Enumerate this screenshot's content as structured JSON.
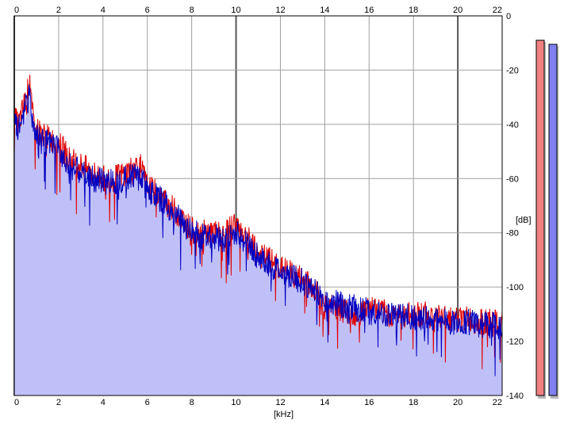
{
  "chart_data": {
    "type": "line",
    "title": "",
    "xlabel": "[kHz]",
    "ylabel": "[dB]",
    "xlim": [
      0,
      22
    ],
    "ylim": [
      -140,
      0
    ],
    "x_ticks": [
      "0",
      "2",
      "4",
      "6",
      "8",
      "10",
      "12",
      "14",
      "16",
      "18",
      "20",
      "22"
    ],
    "y_ticks": [
      "0",
      "-20",
      "-40",
      "-60",
      "-80",
      "-100",
      "-120",
      "-140"
    ],
    "grid": true,
    "legend": "none",
    "series": [
      {
        "color": "#e00000",
        "x": [
          0,
          0.2,
          0.4,
          0.6,
          0.7,
          0.8,
          1,
          1.5,
          2,
          2.5,
          3,
          3.5,
          4,
          4.5,
          5,
          5.5,
          5.7,
          6,
          6.5,
          7,
          7.5,
          8,
          8.5,
          9,
          9.5,
          10,
          10.5,
          11,
          11.5,
          12,
          12.5,
          13,
          13.5,
          14,
          14.5,
          15,
          15.5,
          16,
          16.5,
          17,
          17.5,
          18,
          18.5,
          19,
          19.5,
          20,
          20.5,
          21,
          21.5,
          22
        ],
        "values": [
          -38,
          -40,
          -34,
          -28,
          -22,
          -36,
          -42,
          -45,
          -47,
          -53,
          -55,
          -58,
          -60,
          -60,
          -58,
          -55,
          -56,
          -63,
          -66,
          -70,
          -74,
          -79,
          -80,
          -80,
          -81,
          -76,
          -82,
          -88,
          -90,
          -93,
          -95,
          -97,
          -100,
          -108,
          -107,
          -109,
          -110,
          -107,
          -109,
          -110,
          -111,
          -110,
          -110,
          -111,
          -111,
          -112,
          -112,
          -113,
          -113,
          -114
        ]
      },
      {
        "color": "#0000c0",
        "x": [
          0,
          0.2,
          0.4,
          0.6,
          0.7,
          0.8,
          1,
          1.5,
          2,
          2.5,
          3,
          3.5,
          4,
          4.5,
          5,
          5.5,
          5.7,
          6,
          6.5,
          7,
          7.5,
          8,
          8.5,
          9,
          9.5,
          10,
          10.5,
          11,
          11.5,
          12,
          12.5,
          13,
          13.5,
          14,
          14.5,
          15,
          15.5,
          16,
          16.5,
          17,
          17.5,
          18,
          18.5,
          19,
          19.5,
          20,
          20.5,
          21,
          21.5,
          22
        ],
        "values": [
          -40,
          -42,
          -36,
          -32,
          -28,
          -38,
          -44,
          -47,
          -49,
          -55,
          -58,
          -60,
          -61,
          -61,
          -60,
          -58,
          -59,
          -64,
          -67,
          -71,
          -75,
          -80,
          -81,
          -81,
          -83,
          -80,
          -84,
          -89,
          -92,
          -94,
          -96,
          -98,
          -101,
          -105,
          -106,
          -107,
          -108,
          -109,
          -110,
          -110,
          -111,
          -111,
          -112,
          -112,
          -113,
          -113,
          -113,
          -114,
          -114,
          -115
        ]
      }
    ],
    "fill_color": "#c0c0f8",
    "level_meters": [
      {
        "color": "#f08080",
        "level_db": -9
      },
      {
        "color": "#8080f0",
        "level_db": -10.5
      }
    ]
  }
}
